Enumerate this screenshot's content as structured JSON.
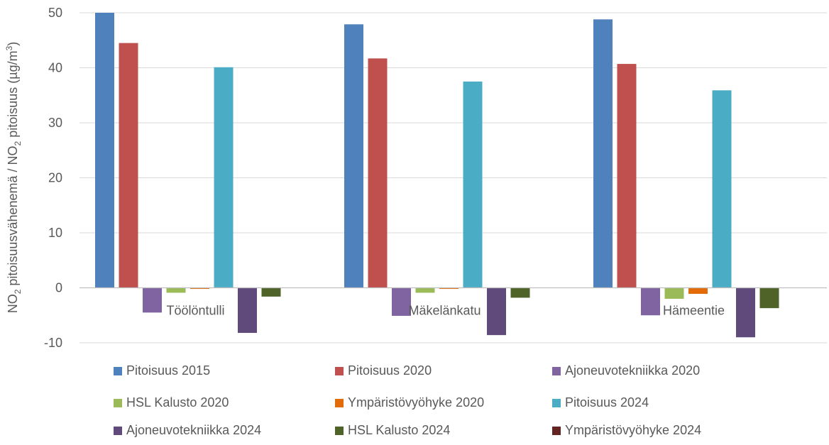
{
  "chart_data": {
    "type": "bar",
    "title": "",
    "xlabel": "",
    "ylabel": {
      "p1": "NO",
      "sub1": "2",
      "p2": " pitoisuusvähenemä  / NO",
      "sub2": "2",
      "p3": " pitoisuus (µg/m",
      "sup": "3",
      "p4": ")"
    },
    "ylim": [
      -10,
      50
    ],
    "yticks": [
      -10,
      0,
      10,
      20,
      30,
      40,
      50
    ],
    "grid": true,
    "legend_position": "bottom",
    "categories": [
      "Töölöntulli",
      "Mäkelänkatu",
      "Hämeentie"
    ],
    "series": [
      {
        "name": "Pitoisuus 2015",
        "color": "#4F81BD",
        "values": [
          50,
          47.9,
          48.8
        ]
      },
      {
        "name": "Pitoisuus 2020",
        "color": "#C0504D",
        "values": [
          44.5,
          41.7,
          40.7
        ]
      },
      {
        "name": "Ajoneuvotekniikka 2020",
        "color": "#8064A2",
        "values": [
          -4.5,
          -5.1,
          -5.0
        ]
      },
      {
        "name": "HSL Kalusto 2020",
        "color": "#9BBB59",
        "values": [
          -0.9,
          -0.9,
          -2.0
        ]
      },
      {
        "name": "Ympäristövyöhyke 2020",
        "color": "#E36C09",
        "values": [
          -0.2,
          -0.2,
          -1.1
        ]
      },
      {
        "name": "Pitoisuus  2024",
        "color": "#4BACC6",
        "values": [
          40.1,
          37.5,
          35.9
        ]
      },
      {
        "name": "Ajoneuvotekniikka 2024",
        "color": "#604A7B",
        "values": [
          -8.2,
          -8.6,
          -9.0
        ]
      },
      {
        "name": "HSL Kalusto 2024",
        "color": "#4F6228",
        "values": [
          -1.6,
          -1.8,
          -3.7
        ]
      },
      {
        "name": "Ympäristövyöhyke 2024",
        "color": "#632523",
        "values": [
          0,
          0,
          0
        ]
      }
    ]
  }
}
